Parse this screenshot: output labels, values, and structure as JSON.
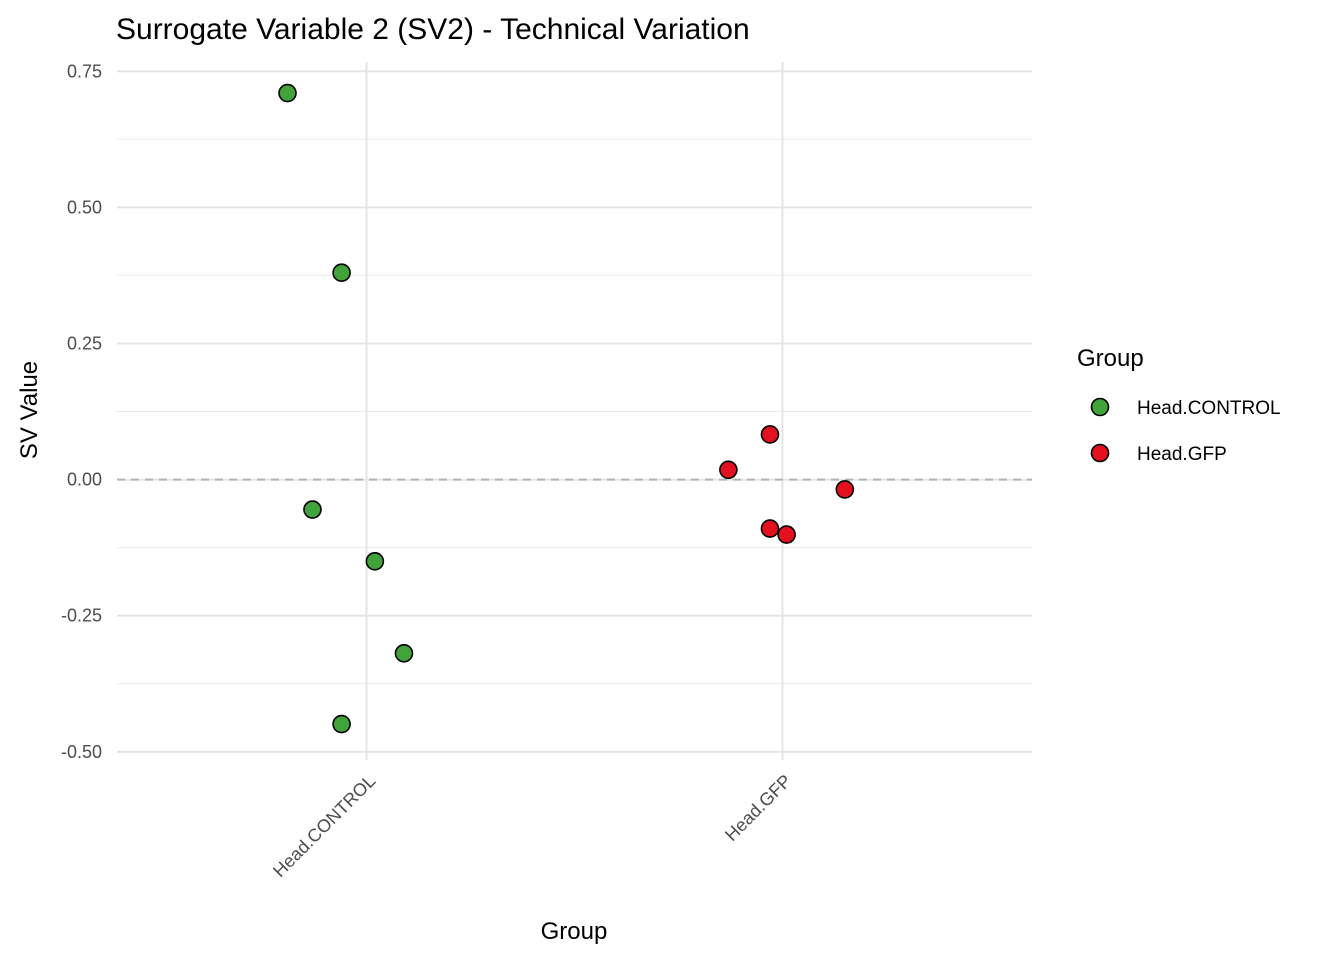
{
  "chart_data": {
    "type": "scatter",
    "title": "Surrogate Variable 2 (SV2) - Technical Variation",
    "xlabel": "Group",
    "ylabel": "SV Value",
    "categories": [
      "Head.CONTROL",
      "Head.GFP"
    ],
    "ylim": [
      -0.515,
      0.767
    ],
    "xlim": [
      0.4,
      2.6
    ],
    "yticks": [
      -0.5,
      -0.25,
      0,
      0.25,
      0.5,
      0.75
    ],
    "ytick_labels": [
      "-0.50",
      "-0.25",
      "0.00",
      "0.25",
      "0.50",
      "0.75"
    ],
    "grid": true,
    "reference_line": {
      "y": 0,
      "style": "dashed",
      "color": "#b3b3b3"
    },
    "legend": {
      "title": "Group",
      "position": "right"
    },
    "series": [
      {
        "name": "Head.CONTROL",
        "color": "#41a33a",
        "x": [
          0.81,
          0.94,
          0.87,
          1.02,
          1.09,
          0.94
        ],
        "y": [
          0.71,
          0.38,
          -0.055,
          -0.15,
          -0.319,
          -0.449
        ]
      },
      {
        "name": "Head.GFP",
        "color": "#e3111f",
        "x": [
          1.97,
          1.87,
          2.15,
          1.97,
          2.01
        ],
        "y": [
          0.083,
          0.018,
          -0.018,
          -0.09,
          -0.101
        ]
      }
    ]
  }
}
